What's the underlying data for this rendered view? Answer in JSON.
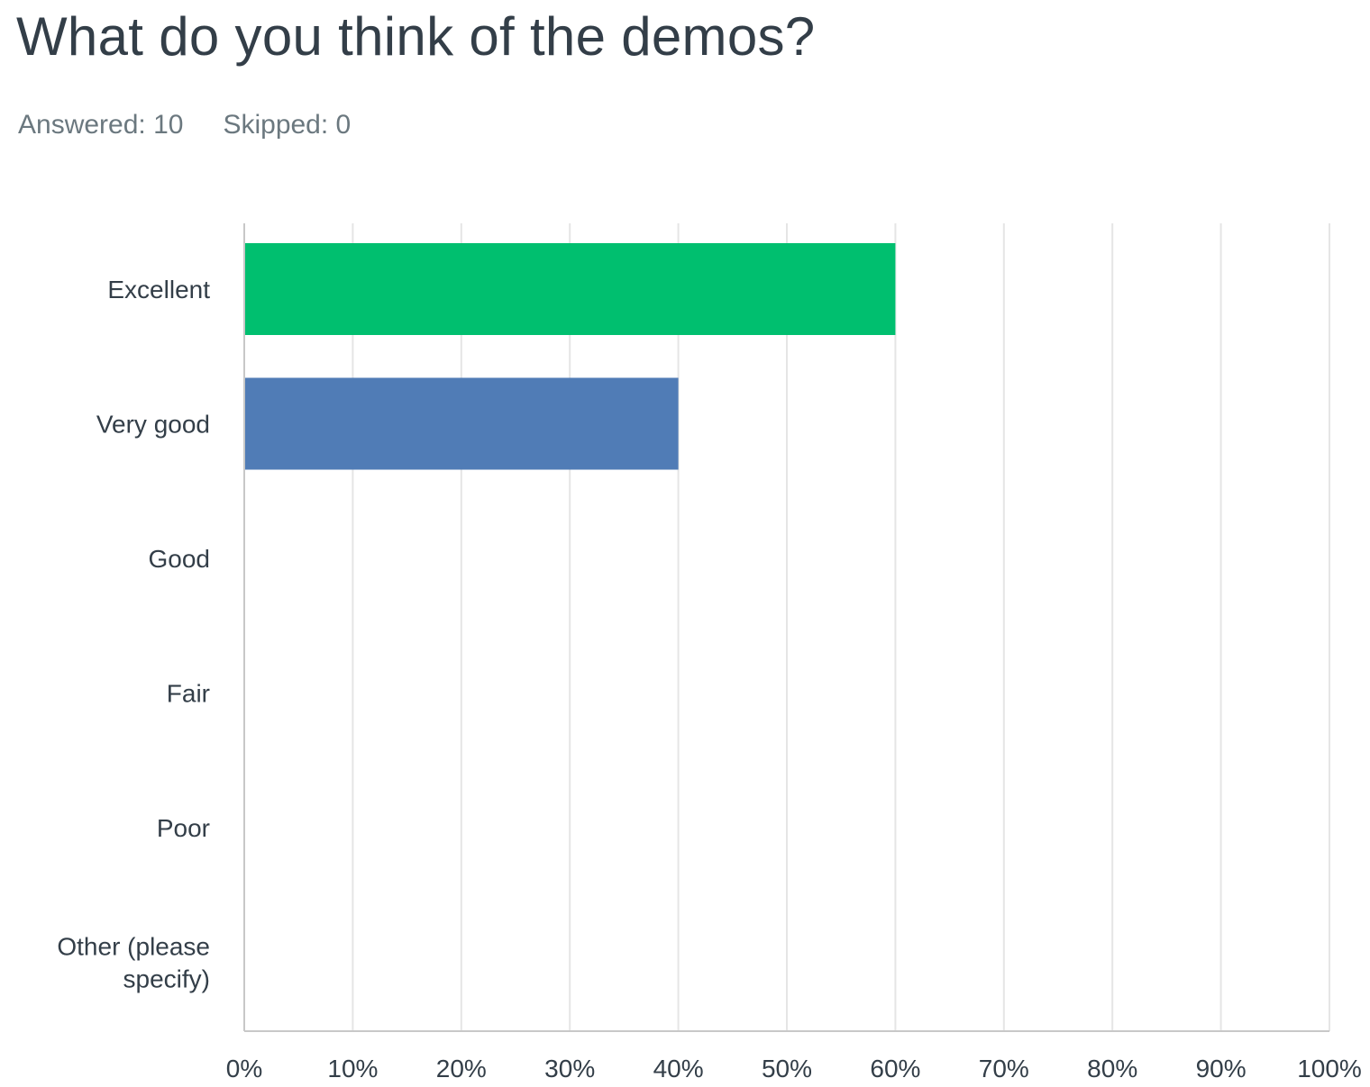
{
  "question": {
    "title": "What do you think of the demos?",
    "answered": "Answered: 10",
    "skipped": "Skipped: 0"
  },
  "colors": {
    "palette": [
      "#00bf6f",
      "#507cb6"
    ],
    "gridline": "#e5e5e5",
    "axis": "#c8c8c8",
    "label": "#333e48"
  },
  "chart_data": {
    "type": "bar",
    "orientation": "horizontal",
    "categories": [
      "Excellent",
      "Very good",
      "Good",
      "Fair",
      "Poor",
      "Other (please specify)"
    ],
    "category_lines": [
      [
        "Excellent"
      ],
      [
        "Very good"
      ],
      [
        "Good"
      ],
      [
        "Fair"
      ],
      [
        "Poor"
      ],
      [
        "Other (please",
        "specify)"
      ]
    ],
    "values": [
      60,
      40,
      0,
      0,
      0,
      0
    ],
    "xlim": [
      0,
      100
    ],
    "xticks": [
      0,
      10,
      20,
      30,
      40,
      50,
      60,
      70,
      80,
      90,
      100
    ],
    "xtick_labels": [
      "0%",
      "10%",
      "20%",
      "30%",
      "40%",
      "50%",
      "60%",
      "70%",
      "80%",
      "90%",
      "100%"
    ],
    "grid": true,
    "title": "What do you think of the demos?",
    "xlabel": "",
    "ylabel": ""
  }
}
